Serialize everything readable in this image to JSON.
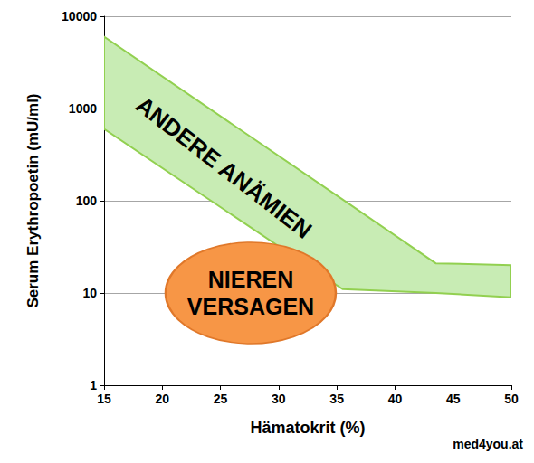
{
  "chart_data": {
    "type": "band",
    "x_label": "Hämatokrit (%)",
    "y_label": "Serum Erythropoetin (mU/ml)",
    "band": {
      "x": [
        15,
        35.5,
        43.5,
        50
      ],
      "upper": [
        6000,
        103,
        21,
        20
      ],
      "lower": [
        600,
        11,
        10,
        9
      ],
      "color": "#c8ecb4"
    },
    "annotations": [
      {
        "text": "ANDERE ANÄMIEN",
        "x": 25.3,
        "y": 230
      },
      {
        "text": "NIEREN\nVERSAGEN",
        "x": 27.6,
        "y": 10,
        "color": "#f79646"
      }
    ],
    "credit": "med4you.at",
    "xlim": [
      15,
      50
    ],
    "xticks": [
      15,
      20,
      25,
      30,
      35,
      40,
      45,
      50
    ],
    "ylim": [
      1,
      10000
    ],
    "yticks": [
      1,
      10,
      100,
      1000,
      10000
    ],
    "log": "y",
    "grid": true
  }
}
